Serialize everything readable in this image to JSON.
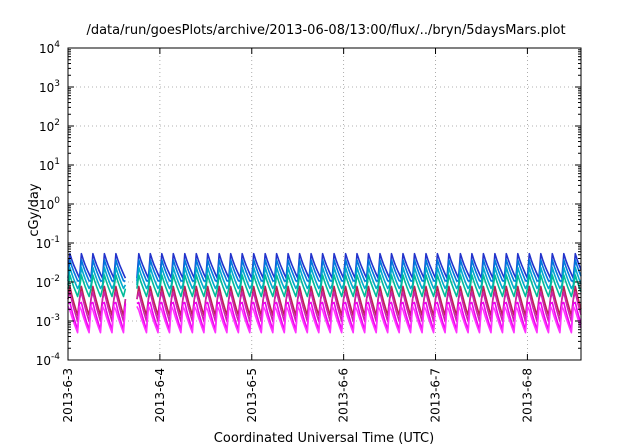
{
  "chart_data": {
    "type": "line",
    "title": "/data/run/goesPlots/archive/2013-06-08/13:00/flux/../bryn/5daysMars.plot",
    "xlabel": "Coordinated Universal Time (UTC)",
    "ylabel": "cGy/day",
    "yscale": "log",
    "ylim": [
      0.0001,
      10000
    ],
    "xlim": [
      "2013-06-03 00:00",
      "2013-06-08 14:00"
    ],
    "grid": true,
    "yticks": [
      {
        "base": "10",
        "exp": "-4",
        "value": 0.0001
      },
      {
        "base": "10",
        "exp": "-3",
        "value": 0.001
      },
      {
        "base": "10",
        "exp": "-2",
        "value": 0.01
      },
      {
        "base": "10",
        "exp": "-1",
        "value": 0.1
      },
      {
        "base": "10",
        "exp": "0",
        "value": 1
      },
      {
        "base": "10",
        "exp": "1",
        "value": 10
      },
      {
        "base": "10",
        "exp": "2",
        "value": 100
      },
      {
        "base": "10",
        "exp": "3",
        "value": 1000
      },
      {
        "base": "10",
        "exp": "4",
        "value": 10000
      }
    ],
    "xticks": [
      "2013-6-3",
      "2013-6-4",
      "2013-6-5",
      "2013-6-6",
      "2013-6-7",
      "2013-6-8"
    ],
    "pattern": {
      "cycle_hours": 3,
      "gap": [
        "2013-06-03 15:00",
        "2013-06-03 18:00"
      ]
    },
    "series": [
      {
        "color": "#2233cc",
        "peak": 0.062,
        "trough": 0.0125
      },
      {
        "color": "#0077dd",
        "peak": 0.045,
        "trough": 0.0085
      },
      {
        "color": "#00aacc",
        "peak": 0.03,
        "trough": 0.0055
      },
      {
        "color": "#00bb99",
        "peak": 0.02,
        "trough": 0.0035
      },
      {
        "color": "#bb2255",
        "peak": 0.012,
        "trough": 0.0011
      },
      {
        "color": "#cc22aa",
        "peak": 0.009,
        "trough": 0.0008
      },
      {
        "color": "#ee00ee",
        "peak": 0.005,
        "trough": 0.0005
      },
      {
        "color": "#ff33ff",
        "peak": 0.003,
        "trough": 0.00045
      }
    ]
  }
}
